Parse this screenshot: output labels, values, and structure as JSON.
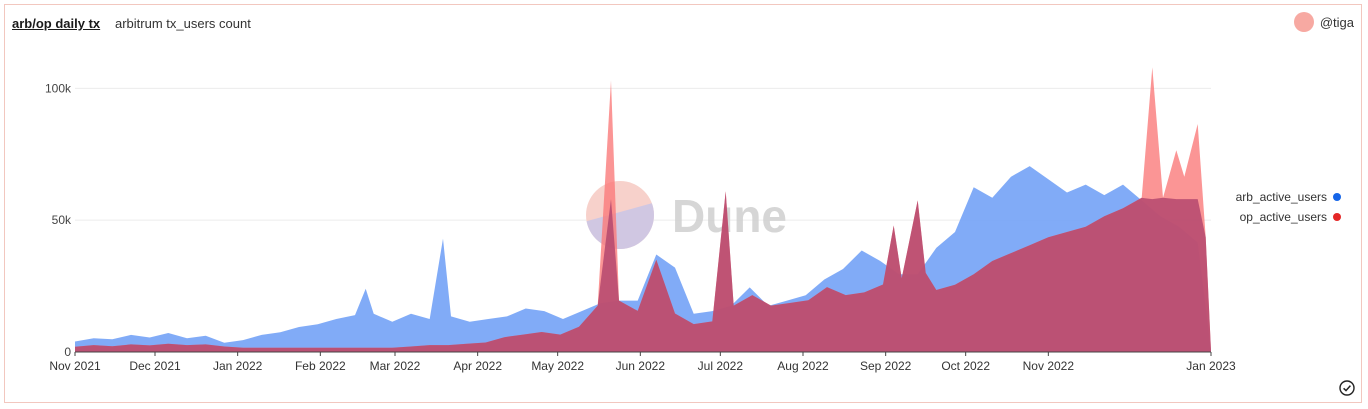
{
  "header": {
    "title": "arb/op daily tx",
    "subtitle": "arbitrum tx_users count",
    "author": "@tiga"
  },
  "watermark": "Dune",
  "colors": {
    "arb_fill": "#7aa7f7",
    "op_fill": "#b4486f",
    "op_spike": "#fa7b7b",
    "arb_dot": "#1565e8",
    "op_dot": "#e42727",
    "grid": "#ececec",
    "axis": "#444444"
  },
  "chart_data": {
    "type": "area",
    "title": "arb/op daily tx",
    "subtitle": "arbitrum tx_users count",
    "x_type": "date",
    "x_range": [
      "2021-11-01",
      "2023-01-01"
    ],
    "x_ticks": [
      {
        "date": "2021-11-01",
        "label": "Nov 2021"
      },
      {
        "date": "2021-12-01",
        "label": "Dec 2021"
      },
      {
        "date": "2022-01-01",
        "label": "Jan 2022"
      },
      {
        "date": "2022-02-01",
        "label": "Feb 2022"
      },
      {
        "date": "2022-03-01",
        "label": "Mar 2022"
      },
      {
        "date": "2022-04-01",
        "label": "Apr 2022"
      },
      {
        "date": "2022-05-01",
        "label": "May 2022"
      },
      {
        "date": "2022-06-01",
        "label": "Jun 2022"
      },
      {
        "date": "2022-07-01",
        "label": "Jul 2022"
      },
      {
        "date": "2022-08-01",
        "label": "Aug 2022"
      },
      {
        "date": "2022-09-01",
        "label": "Sep 2022"
      },
      {
        "date": "2022-10-01",
        "label": "Oct 2022"
      },
      {
        "date": "2022-11-01",
        "label": "Nov 2022"
      },
      {
        "date": "2023-01-01",
        "label": "Jan 2023"
      }
    ],
    "y_range": [
      0,
      110000
    ],
    "y_ticks": [
      {
        "value": 0,
        "label": "0"
      },
      {
        "value": 50000,
        "label": "50k"
      },
      {
        "value": 100000,
        "label": "100k"
      }
    ],
    "grid": true,
    "legend_position": "right",
    "series": [
      {
        "name": "arb_active_users",
        "points": [
          [
            "2021-11-01",
            4000
          ],
          [
            "2021-11-08",
            5200
          ],
          [
            "2021-11-15",
            4800
          ],
          [
            "2021-11-22",
            6500
          ],
          [
            "2021-11-29",
            5500
          ],
          [
            "2021-12-06",
            7200
          ],
          [
            "2021-12-13",
            5200
          ],
          [
            "2021-12-20",
            6200
          ],
          [
            "2021-12-27",
            3500
          ],
          [
            "2022-01-03",
            4500
          ],
          [
            "2022-01-10",
            6500
          ],
          [
            "2022-01-17",
            7500
          ],
          [
            "2022-01-24",
            9500
          ],
          [
            "2022-01-31",
            10500
          ],
          [
            "2022-02-07",
            12500
          ],
          [
            "2022-02-14",
            14000
          ],
          [
            "2022-02-18",
            24000
          ],
          [
            "2022-02-21",
            14500
          ],
          [
            "2022-02-28",
            11500
          ],
          [
            "2022-03-07",
            14500
          ],
          [
            "2022-03-14",
            12500
          ],
          [
            "2022-03-19",
            43000
          ],
          [
            "2022-03-22",
            13500
          ],
          [
            "2022-03-29",
            11500
          ],
          [
            "2022-04-05",
            12500
          ],
          [
            "2022-04-12",
            13500
          ],
          [
            "2022-04-19",
            16500
          ],
          [
            "2022-04-26",
            15500
          ],
          [
            "2022-05-03",
            12500
          ],
          [
            "2022-05-10",
            15500
          ],
          [
            "2022-05-17",
            18500
          ],
          [
            "2022-05-24",
            19500
          ],
          [
            "2022-05-31",
            19500
          ],
          [
            "2022-06-07",
            37000
          ],
          [
            "2022-06-14",
            32000
          ],
          [
            "2022-06-21",
            14500
          ],
          [
            "2022-06-28",
            15500
          ],
          [
            "2022-07-05",
            17500
          ],
          [
            "2022-07-12",
            24500
          ],
          [
            "2022-07-19",
            17500
          ],
          [
            "2022-07-26",
            19500
          ],
          [
            "2022-08-02",
            21500
          ],
          [
            "2022-08-09",
            27500
          ],
          [
            "2022-08-16",
            31500
          ],
          [
            "2022-08-23",
            38500
          ],
          [
            "2022-08-30",
            34500
          ],
          [
            "2022-09-06",
            29500
          ],
          [
            "2022-09-13",
            29500
          ],
          [
            "2022-09-20",
            39500
          ],
          [
            "2022-09-27",
            45500
          ],
          [
            "2022-10-04",
            62500
          ],
          [
            "2022-10-11",
            58500
          ],
          [
            "2022-10-18",
            66500
          ],
          [
            "2022-10-25",
            70500
          ],
          [
            "2022-11-01",
            65500
          ],
          [
            "2022-11-08",
            60500
          ],
          [
            "2022-11-15",
            63500
          ],
          [
            "2022-11-22",
            59500
          ],
          [
            "2022-11-29",
            63500
          ],
          [
            "2022-12-06",
            57500
          ],
          [
            "2022-12-13",
            51500
          ],
          [
            "2022-12-20",
            47500
          ],
          [
            "2022-12-27",
            41500
          ],
          [
            "2023-01-01",
            500
          ]
        ]
      },
      {
        "name": "op_active_users",
        "points": [
          [
            "2021-11-01",
            2000
          ],
          [
            "2021-11-08",
            2600
          ],
          [
            "2021-11-15",
            2200
          ],
          [
            "2021-11-22",
            2900
          ],
          [
            "2021-11-29",
            2500
          ],
          [
            "2021-12-06",
            3100
          ],
          [
            "2021-12-13",
            2600
          ],
          [
            "2021-12-20",
            2900
          ],
          [
            "2021-12-27",
            2100
          ],
          [
            "2022-01-03",
            1600
          ],
          [
            "2022-01-10",
            1600
          ],
          [
            "2022-01-17",
            1600
          ],
          [
            "2022-01-24",
            1600
          ],
          [
            "2022-01-31",
            1600
          ],
          [
            "2022-02-07",
            1600
          ],
          [
            "2022-02-14",
            1600
          ],
          [
            "2022-02-21",
            1600
          ],
          [
            "2022-02-28",
            1600
          ],
          [
            "2022-03-07",
            2100
          ],
          [
            "2022-03-14",
            2600
          ],
          [
            "2022-03-21",
            2600
          ],
          [
            "2022-03-28",
            3100
          ],
          [
            "2022-04-04",
            3600
          ],
          [
            "2022-04-11",
            5600
          ],
          [
            "2022-04-18",
            6600
          ],
          [
            "2022-04-25",
            7600
          ],
          [
            "2022-05-02",
            6600
          ],
          [
            "2022-05-09",
            9600
          ],
          [
            "2022-05-16",
            17600
          ],
          [
            "2022-05-21",
            103000
          ],
          [
            "2022-05-24",
            19500
          ],
          [
            "2022-05-31",
            15600
          ],
          [
            "2022-06-07",
            35000
          ],
          [
            "2022-06-14",
            14600
          ],
          [
            "2022-06-21",
            10600
          ],
          [
            "2022-06-28",
            11600
          ],
          [
            "2022-07-03",
            61000
          ],
          [
            "2022-07-06",
            17600
          ],
          [
            "2022-07-13",
            21600
          ],
          [
            "2022-07-20",
            17600
          ],
          [
            "2022-07-27",
            18600
          ],
          [
            "2022-08-03",
            19600
          ],
          [
            "2022-08-10",
            24600
          ],
          [
            "2022-08-17",
            21600
          ],
          [
            "2022-08-24",
            22600
          ],
          [
            "2022-08-31",
            25600
          ],
          [
            "2022-09-04",
            48000
          ],
          [
            "2022-09-07",
            28000
          ],
          [
            "2022-09-13",
            57500
          ],
          [
            "2022-09-16",
            30000
          ],
          [
            "2022-09-20",
            23500
          ],
          [
            "2022-09-27",
            25500
          ],
          [
            "2022-10-04",
            29500
          ],
          [
            "2022-10-11",
            34500
          ],
          [
            "2022-10-18",
            37500
          ],
          [
            "2022-10-25",
            40500
          ],
          [
            "2022-11-01",
            43500
          ],
          [
            "2022-11-08",
            45500
          ],
          [
            "2022-11-15",
            47500
          ],
          [
            "2022-11-22",
            51500
          ],
          [
            "2022-11-29",
            54500
          ],
          [
            "2022-12-06",
            58500
          ],
          [
            "2022-12-10",
            108000
          ],
          [
            "2022-12-14",
            58500
          ],
          [
            "2022-12-19",
            76500
          ],
          [
            "2022-12-22",
            66500
          ],
          [
            "2022-12-27",
            86500
          ],
          [
            "2022-12-30",
            43500
          ],
          [
            "2023-01-01",
            500
          ]
        ]
      }
    ]
  },
  "legend": {
    "arb_label": "arb_active_users",
    "op_label": "op_active_users"
  },
  "icons": {
    "avatar": "avatar-icon",
    "check": "check-circle-icon"
  }
}
